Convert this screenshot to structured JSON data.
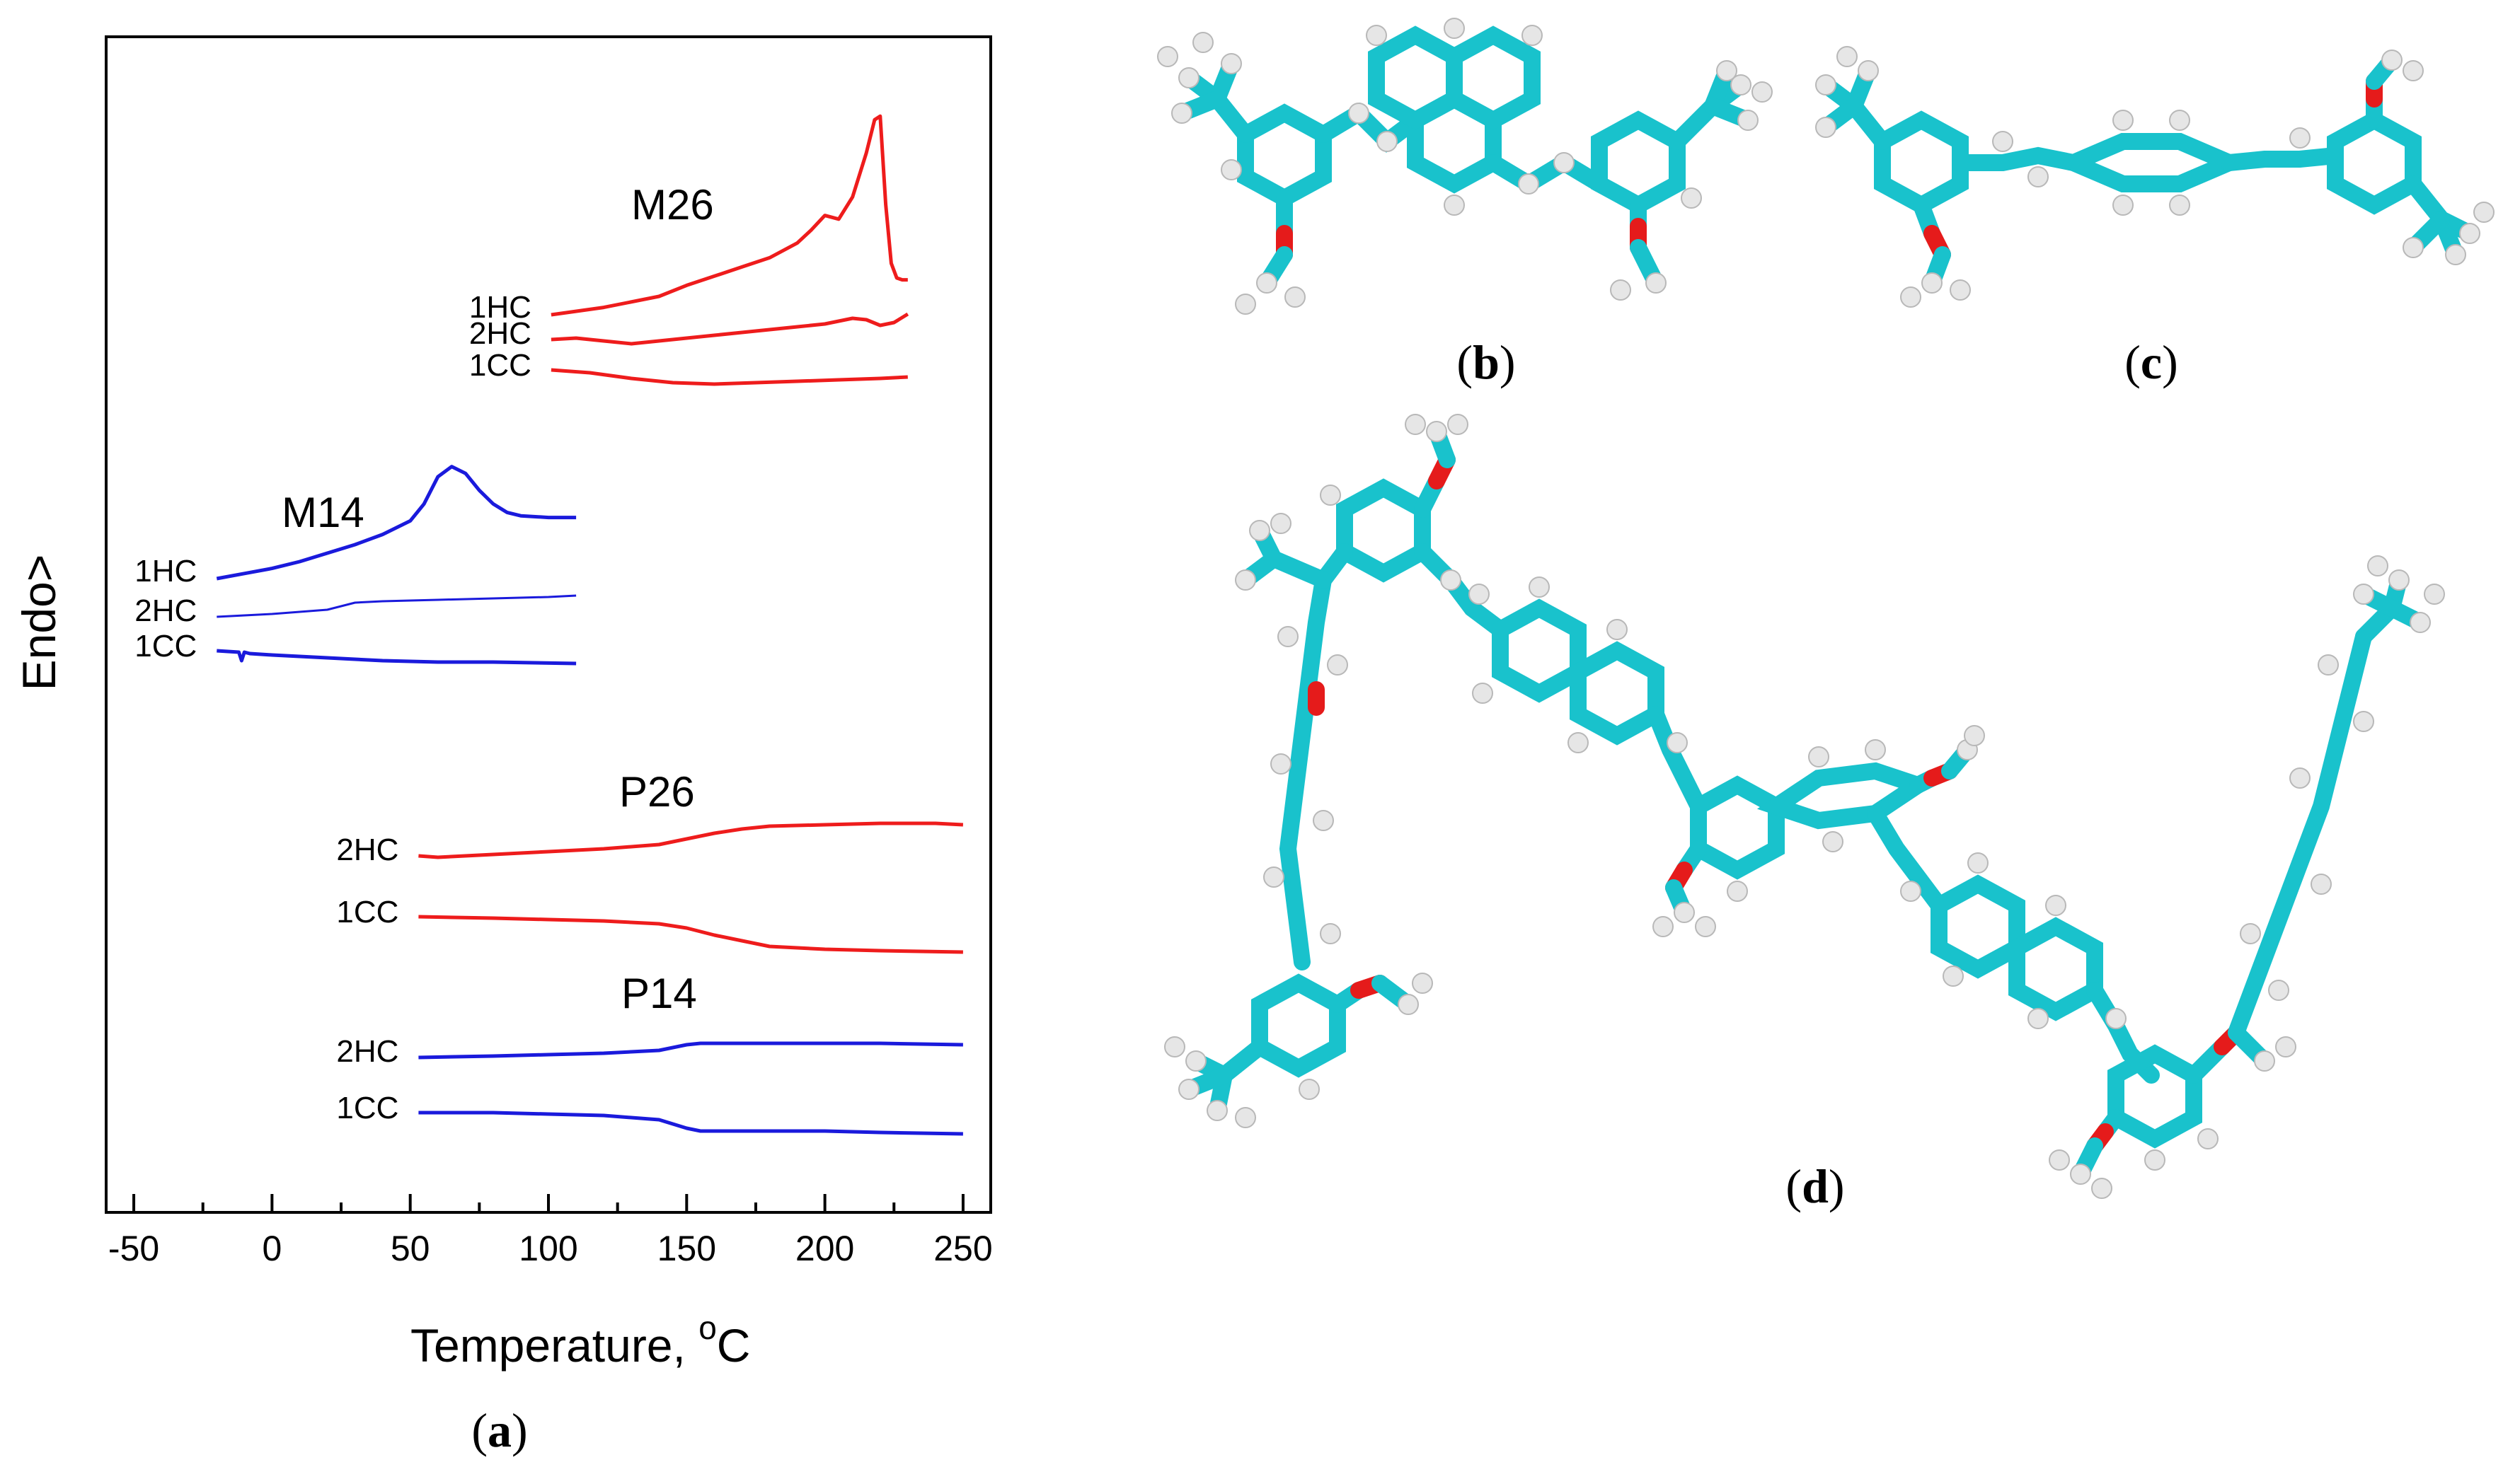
{
  "figure": {
    "panels": {
      "a": "(a)",
      "b": "(b)",
      "c": "(c)",
      "d": "(d)",
      "a_letter": "a",
      "b_letter": "b",
      "c_letter": "c",
      "d_letter": "d"
    }
  },
  "chart_data": {
    "type": "line",
    "xlabel": "Temperature, ",
    "xlabel_sup": "o",
    "xlabel_unit": "C",
    "ylabel": "Endo>",
    "xlim": [
      -60,
      260
    ],
    "xticks": [
      -50,
      0,
      50,
      100,
      150,
      200,
      250
    ],
    "xtick_labels": [
      "-50",
      "0",
      "50",
      "100",
      "150",
      "200",
      "250"
    ],
    "colors": {
      "M26": "#ee1c1c",
      "M14": "#1a1adc",
      "P26": "#ee1c1c",
      "P14": "#1a1adc"
    },
    "samples": [
      {
        "name": "M26",
        "color": "#ee1c1c",
        "curves": [
          {
            "label": "1HC",
            "x": [
              101,
              120,
              140,
              150,
              160,
              170,
              180,
              190,
              195,
              200,
              205,
              210,
              215,
              218,
              220,
              222,
              224,
              226,
              228,
              230
            ],
            "y": [
              0,
              4,
              10,
              16,
              21,
              26,
              31,
              39,
              46,
              54,
              52,
              64,
              88,
              106,
              108,
              60,
              28,
              20,
              19,
              19
            ]
          },
          {
            "label": "2HC",
            "x": [
              101,
              110,
              120,
              130,
              140,
              150,
              160,
              170,
              180,
              190,
              200,
              210,
              215,
              220,
              225,
              230
            ],
            "y": [
              0,
              1,
              -1,
              -3,
              -1,
              1,
              3,
              5,
              7,
              9,
              11,
              15,
              14,
              10,
              12,
              18
            ]
          },
          {
            "label": "1CC",
            "x": [
              101,
              115,
              130,
              145,
              160,
              175,
              190,
              205,
              220,
              230
            ],
            "y": [
              0,
              -2,
              -6,
              -9,
              -10,
              -9,
              -8,
              -7,
              -6,
              -5
            ]
          }
        ]
      },
      {
        "name": "M14",
        "color": "#1a1adc",
        "curves": [
          {
            "label": "1HC",
            "x": [
              -20,
              -10,
              0,
              10,
              20,
              30,
              40,
              50,
              55,
              60,
              65,
              70,
              75,
              80,
              85,
              90,
              100,
              110
            ],
            "y": [
              0,
              3,
              6,
              10,
              15,
              20,
              26,
              34,
              44,
              60,
              66,
              62,
              52,
              44,
              39,
              37,
              36,
              36
            ]
          },
          {
            "label": "2HC",
            "x": [
              -20,
              0,
              20,
              30,
              40,
              60,
              80,
              100,
              110
            ],
            "y": [
              0,
              2,
              5,
              10,
              11,
              12,
              13,
              14,
              15
            ]
          },
          {
            "label": "1CC",
            "x": [
              -20,
              -12,
              -11,
              -10,
              -8,
              0,
              20,
              40,
              60,
              80,
              110
            ],
            "y": [
              0,
              -1,
              -7,
              -1,
              -2,
              -3,
              -5,
              -7,
              -8,
              -8,
              -9
            ]
          }
        ]
      },
      {
        "name": "P26",
        "color": "#ee1c1c",
        "curves": [
          {
            "label": "2HC",
            "x": [
              53,
              60,
              80,
              100,
              120,
              140,
              150,
              160,
              170,
              180,
              200,
              220,
              240,
              250
            ],
            "y": [
              0,
              -1,
              1,
              3,
              5,
              8,
              12,
              16,
              19,
              21,
              22,
              23,
              23,
              22
            ]
          },
          {
            "label": "1CC",
            "x": [
              53,
              80,
              100,
              120,
              140,
              150,
              160,
              170,
              180,
              200,
              220,
              250
            ],
            "y": [
              0,
              -1,
              -2,
              -3,
              -5,
              -8,
              -13,
              -17,
              -21,
              -23,
              -24,
              -25
            ]
          }
        ]
      },
      {
        "name": "P14",
        "color": "#1a1adc",
        "curves": [
          {
            "label": "2HC",
            "x": [
              53,
              80,
              100,
              120,
              140,
              145,
              150,
              155,
              160,
              180,
              200,
              220,
              250
            ],
            "y": [
              0,
              1,
              2,
              3,
              5,
              7,
              9,
              10,
              10,
              10,
              10,
              10,
              9
            ]
          },
          {
            "label": "1CC",
            "x": [
              53,
              80,
              100,
              120,
              140,
              145,
              150,
              155,
              160,
              180,
              200,
              220,
              250
            ],
            "y": [
              0,
              0,
              -1,
              -2,
              -5,
              -8,
              -11,
              -13,
              -13,
              -13,
              -13,
              -14,
              -15
            ]
          }
        ]
      }
    ]
  },
  "molecule_colors": {
    "carbon_bond": "#19c2cc",
    "oxygen_bond": "#e51b1b",
    "hydrogen": "#e6e6e6"
  }
}
